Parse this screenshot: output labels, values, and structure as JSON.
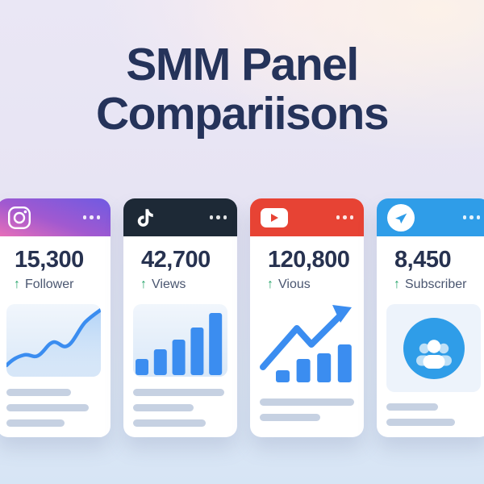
{
  "title": {
    "line1": "SMM Panel",
    "line2": "Compariisons"
  },
  "colors": {
    "background_top": "#eae7f5",
    "background_bottom": "#d7e5f5",
    "pink_glow": "#f9ecf0",
    "peach_glow": "#fdf2e8",
    "title_text": "#25335a",
    "card_background": "#ffffff",
    "stat_text": "#273250",
    "label_text": "#4a5670",
    "growth_green": "#27a56a",
    "chart_blue": "#3b8df0",
    "skeleton_gray": "#c6d1e2",
    "chart_panel": "#e9f1fa",
    "instagram_gradient_start": "#6f5ae2",
    "instagram_gradient_end": "#e96fb8",
    "tiktok_header": "#1d2936",
    "youtube_header": "#e74334",
    "telegram_header": "#2f9de8"
  },
  "cards": [
    {
      "icon": "instagram-icon",
      "value": "15,300",
      "arrow": "↑",
      "label": "Follower",
      "chart": {
        "type": "line",
        "trend": "up"
      },
      "skeleton": [
        80,
        102,
        72
      ]
    },
    {
      "icon": "tiktok-icon",
      "value": "42,700",
      "arrow": "↑",
      "label": "Views",
      "chart": {
        "type": "bar",
        "bars": [
          20,
          32,
          44,
          59,
          77
        ]
      },
      "skeleton": [
        113,
        75,
        90
      ]
    },
    {
      "icon": "youtube-icon",
      "value": "120,800",
      "arrow": "↑",
      "label": "Vious",
      "chart": {
        "type": "bar-arrow",
        "bars": [
          15,
          29,
          36,
          47
        ]
      },
      "skeleton": [
        117,
        75
      ]
    },
    {
      "icon": "telegram-icon",
      "value": "8,450",
      "arrow": "↑",
      "label": "Subscriber",
      "chart": {
        "type": "audience-icon"
      },
      "skeleton": [
        64,
        85
      ]
    }
  ]
}
